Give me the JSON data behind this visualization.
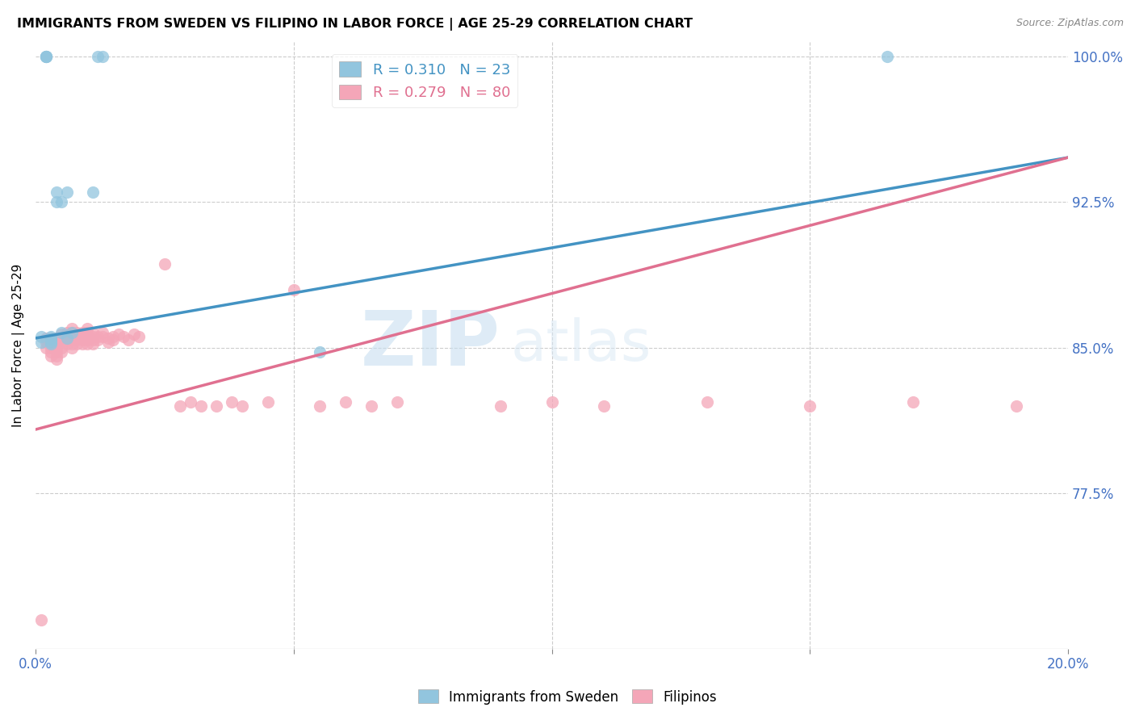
{
  "title": "IMMIGRANTS FROM SWEDEN VS FILIPINO IN LABOR FORCE | AGE 25-29 CORRELATION CHART",
  "source": "Source: ZipAtlas.com",
  "ylabel": "In Labor Force | Age 25-29",
  "ylim": [
    0.695,
    1.008
  ],
  "xlim": [
    0.0,
    0.2
  ],
  "yticks": [
    1.0,
    0.925,
    0.85,
    0.775
  ],
  "ytick_labels": [
    "100.0%",
    "92.5%",
    "85.0%",
    "77.5%"
  ],
  "legend_blue_r": "R = 0.310",
  "legend_blue_n": "N = 23",
  "legend_pink_r": "R = 0.279",
  "legend_pink_n": "N = 80",
  "blue_color": "#92c5de",
  "pink_color": "#f4a6b8",
  "blue_line_color": "#4393c3",
  "pink_line_color": "#e07090",
  "watermark_zip": "ZIP",
  "watermark_atlas": "atlas",
  "blue_line_x0": 0.0,
  "blue_line_x1": 0.2,
  "blue_line_y0": 0.855,
  "blue_line_y1": 0.948,
  "pink_line_x0": 0.0,
  "pink_line_x1": 0.2,
  "pink_line_y0": 0.808,
  "pink_line_y1": 0.948,
  "blue_x": [
    0.001,
    0.001,
    0.002,
    0.002,
    0.002,
    0.002,
    0.003,
    0.003,
    0.003,
    0.003,
    0.003,
    0.004,
    0.004,
    0.005,
    0.005,
    0.006,
    0.006,
    0.007,
    0.011,
    0.012,
    0.013,
    0.055,
    0.165
  ],
  "blue_y": [
    0.856,
    0.853,
    1.0,
    1.0,
    1.0,
    1.0,
    0.855,
    0.856,
    0.854,
    0.853,
    0.852,
    0.93,
    0.925,
    0.858,
    0.925,
    0.93,
    0.855,
    0.858,
    0.93,
    1.0,
    1.0,
    0.848,
    1.0
  ],
  "pink_x": [
    0.001,
    0.002,
    0.002,
    0.002,
    0.003,
    0.003,
    0.003,
    0.003,
    0.003,
    0.004,
    0.004,
    0.004,
    0.004,
    0.004,
    0.004,
    0.005,
    0.005,
    0.005,
    0.005,
    0.005,
    0.006,
    0.006,
    0.006,
    0.006,
    0.007,
    0.007,
    0.007,
    0.007,
    0.007,
    0.007,
    0.008,
    0.008,
    0.008,
    0.008,
    0.009,
    0.009,
    0.009,
    0.009,
    0.01,
    0.01,
    0.01,
    0.01,
    0.01,
    0.011,
    0.011,
    0.011,
    0.011,
    0.012,
    0.012,
    0.013,
    0.013,
    0.014,
    0.014,
    0.015,
    0.015,
    0.016,
    0.017,
    0.018,
    0.019,
    0.02,
    0.025,
    0.028,
    0.03,
    0.032,
    0.035,
    0.038,
    0.04,
    0.045,
    0.05,
    0.055,
    0.06,
    0.065,
    0.07,
    0.09,
    0.1,
    0.11,
    0.13,
    0.15,
    0.17,
    0.19
  ],
  "pink_y": [
    0.71,
    0.855,
    0.853,
    0.85,
    0.855,
    0.853,
    0.85,
    0.848,
    0.846,
    0.855,
    0.853,
    0.85,
    0.848,
    0.846,
    0.844,
    0.857,
    0.855,
    0.853,
    0.85,
    0.848,
    0.858,
    0.856,
    0.854,
    0.852,
    0.86,
    0.858,
    0.856,
    0.854,
    0.852,
    0.85,
    0.858,
    0.856,
    0.854,
    0.852,
    0.858,
    0.856,
    0.854,
    0.852,
    0.86,
    0.858,
    0.856,
    0.854,
    0.852,
    0.858,
    0.856,
    0.854,
    0.852,
    0.856,
    0.854,
    0.858,
    0.856,
    0.855,
    0.853,
    0.856,
    0.854,
    0.857,
    0.856,
    0.854,
    0.857,
    0.856,
    0.893,
    0.82,
    0.822,
    0.82,
    0.82,
    0.822,
    0.82,
    0.822,
    0.88,
    0.82,
    0.822,
    0.82,
    0.822,
    0.82,
    0.822,
    0.82,
    0.822,
    0.82,
    0.822,
    0.82
  ]
}
